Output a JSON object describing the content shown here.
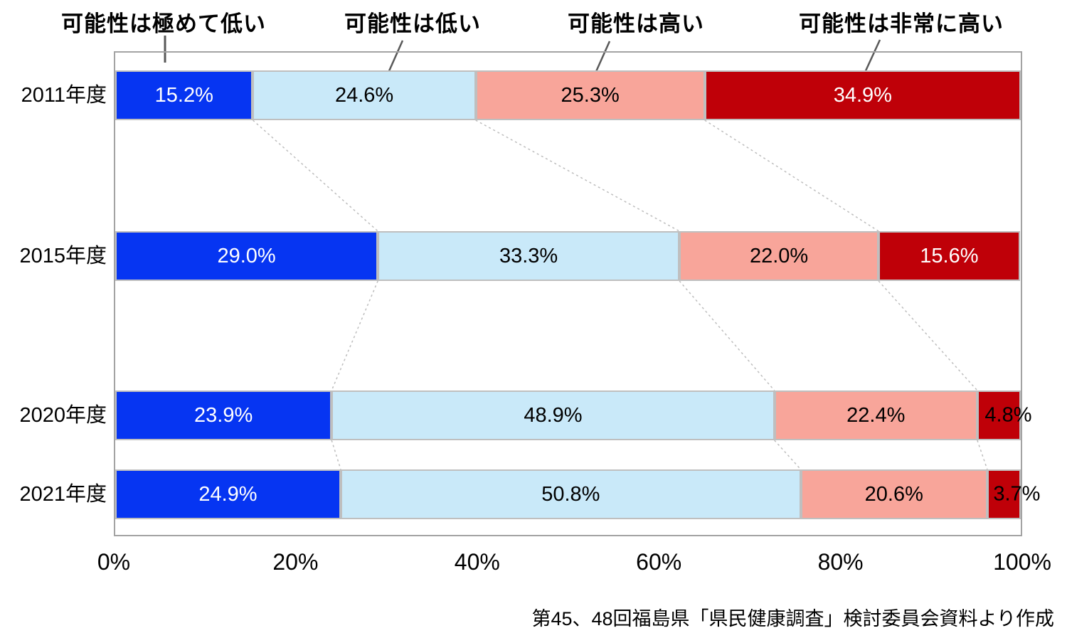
{
  "chart_data": {
    "type": "bar",
    "subtype": "stacked-horizontal-100pct",
    "categories": [
      "2011年度",
      "2015年度",
      "2020年度",
      "2021年度"
    ],
    "series": [
      {
        "name": "可能性は極めて低い",
        "color": "#0635f2",
        "label_color": "#ffffff",
        "values": [
          15.2,
          29.0,
          23.9,
          24.9
        ]
      },
      {
        "name": "可能性は低い",
        "color": "#c9e9f9",
        "label_color": "#000000",
        "values": [
          24.6,
          33.3,
          48.9,
          50.8
        ]
      },
      {
        "name": "可能性は高い",
        "color": "#f8a59a",
        "label_color": "#000000",
        "values": [
          25.3,
          22.0,
          22.4,
          20.6
        ]
      },
      {
        "name": "可能性は非常に高い",
        "color": "#bf0008",
        "label_color": "#ffffff",
        "values": [
          34.9,
          15.6,
          4.8,
          3.7
        ]
      }
    ],
    "value_suffix": "%",
    "value_decimals": 1,
    "x_ticks": [
      "0%",
      "20%",
      "40%",
      "60%",
      "80%",
      "100%"
    ],
    "xlim": [
      0,
      100
    ],
    "grid": false,
    "legend_position": "top-callouts",
    "source": "第45、48回福島県「県民健康調査」検討委員会資料より作成",
    "colors": {
      "bar_border": "#bfbfbf",
      "frame_border": "#a3a3a3",
      "connector_line": "#bdbdbd",
      "leader_line": "#595959"
    }
  }
}
